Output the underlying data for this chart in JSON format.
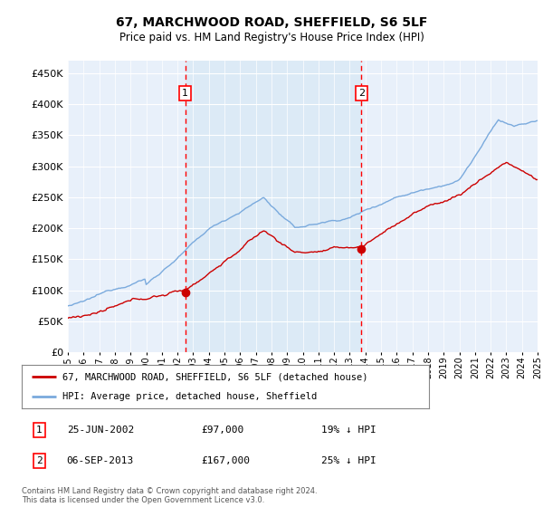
{
  "title": "67, MARCHWOOD ROAD, SHEFFIELD, S6 5LF",
  "subtitle": "Price paid vs. HM Land Registry's House Price Index (HPI)",
  "legend_line1": "67, MARCHWOOD ROAD, SHEFFIELD, S6 5LF (detached house)",
  "legend_line2": "HPI: Average price, detached house, Sheffield",
  "annotation1_date": "25-JUN-2002",
  "annotation1_price": "£97,000",
  "annotation1_hpi": "19% ↓ HPI",
  "annotation1_year": 2002.5,
  "annotation1_value": 97000,
  "annotation2_date": "06-SEP-2013",
  "annotation2_price": "£167,000",
  "annotation2_hpi": "25% ↓ HPI",
  "annotation2_year": 2013.75,
  "annotation2_value": 167000,
  "footer": "Contains HM Land Registry data © Crown copyright and database right 2024.\nThis data is licensed under the Open Government Licence v3.0.",
  "hpi_color": "#7aaadd",
  "price_color": "#cc0000",
  "shaded_color": "#d8e8f5",
  "plot_bg": "#e8f0fa",
  "ylim": [
    0,
    470000
  ],
  "yticks": [
    0,
    50000,
    100000,
    150000,
    200000,
    250000,
    300000,
    350000,
    400000,
    450000
  ],
  "xmin": 1995,
  "xmax": 2025
}
